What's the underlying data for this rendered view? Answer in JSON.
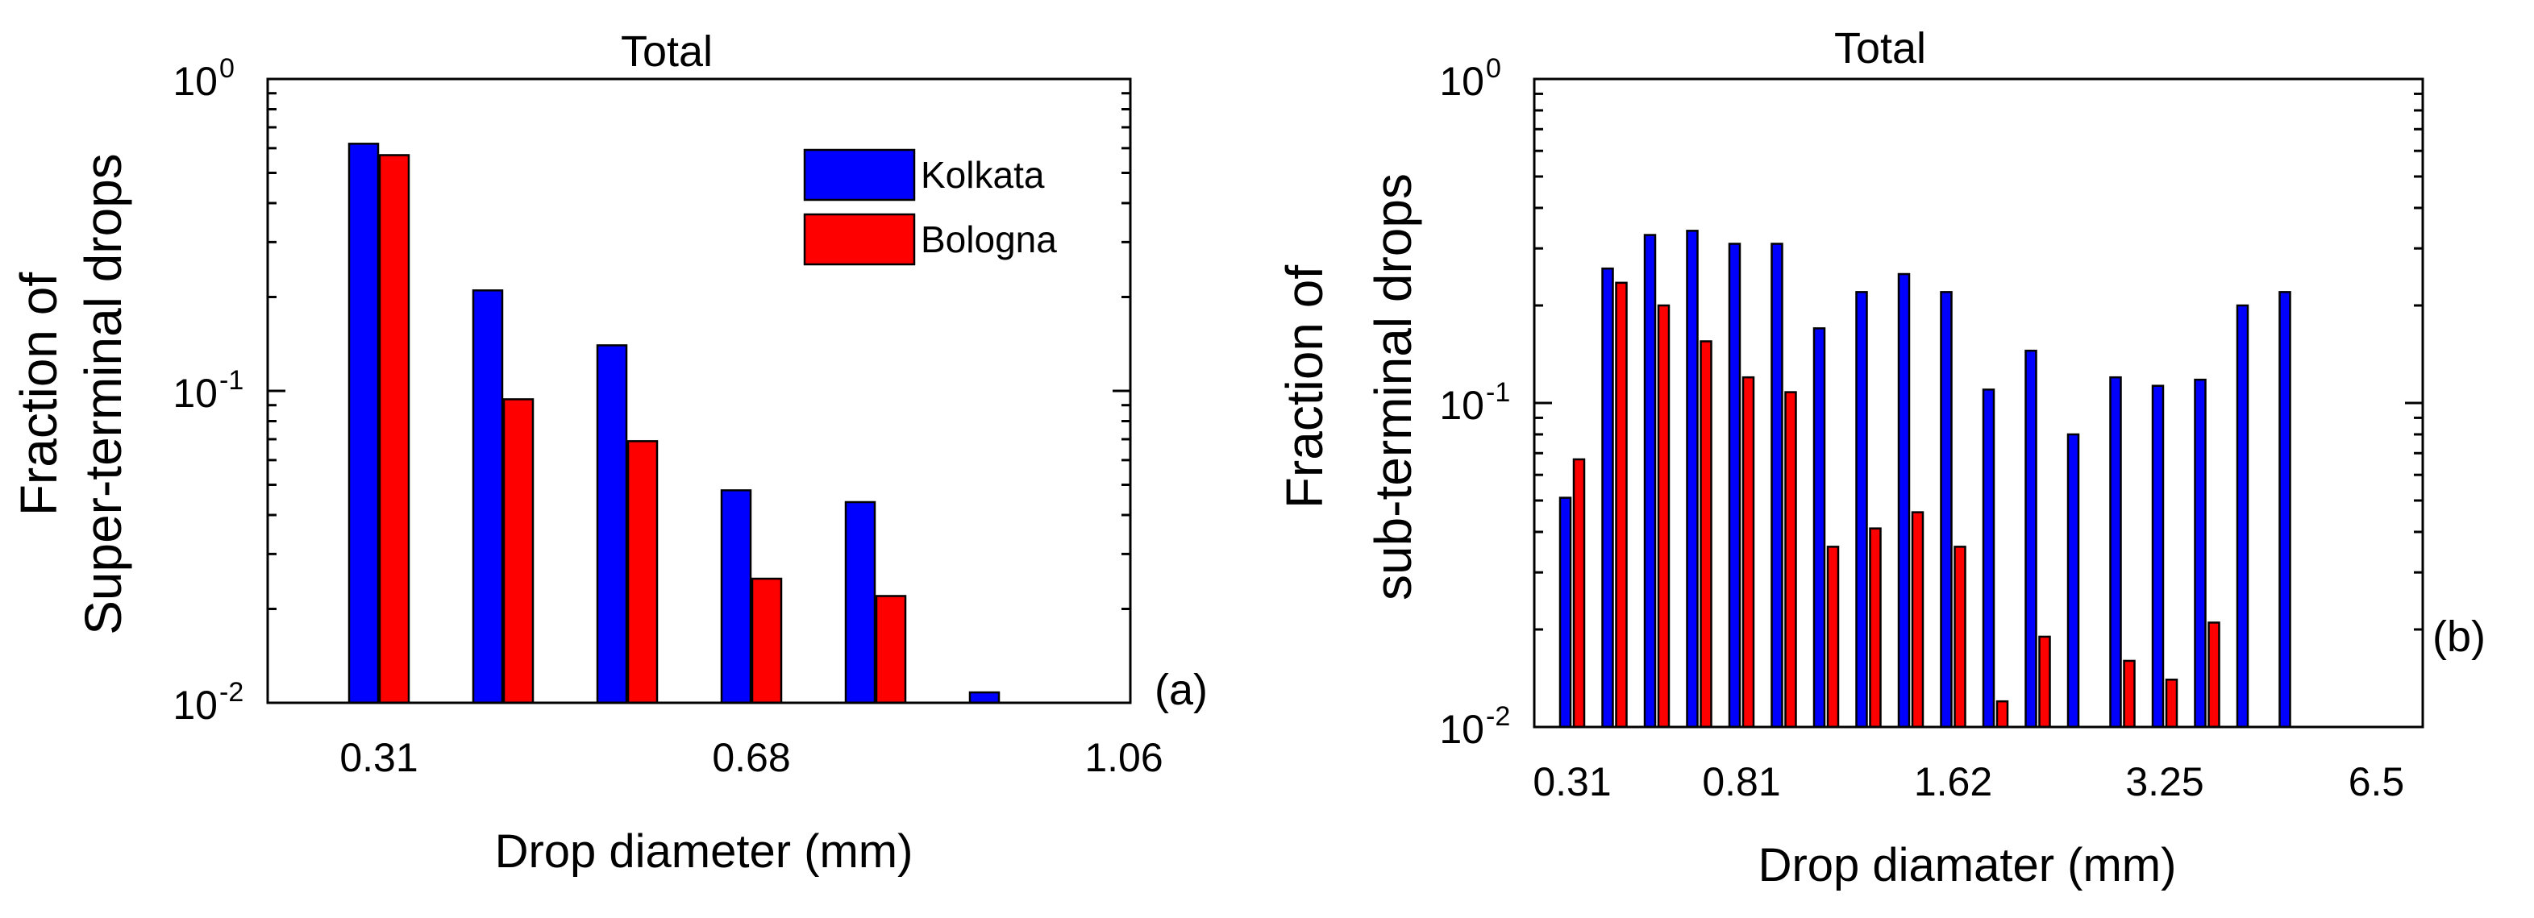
{
  "colors": {
    "kolkata": "#0000ff",
    "bologna": "#ff0000",
    "axis": "#000000"
  },
  "chart_data": [
    {
      "type": "bar",
      "id": "a",
      "title": "Total",
      "panel_label": "(a)",
      "xlabel": "Drop diameter (mm)",
      "ylabel_lines": [
        "Fraction of",
        "Super-terminal drops"
      ],
      "yscale": "log",
      "ylim": [
        0.01,
        1
      ],
      "yticks": [
        {
          "base": "10",
          "exp": "-2"
        },
        {
          "base": "10",
          "exp": "-1"
        },
        {
          "base": "10",
          "exp": "0"
        }
      ],
      "xtick_labels": [
        "0.31",
        "0.68",
        "1.06"
      ],
      "xtick_bins": [
        0,
        3,
        6
      ],
      "legend": {
        "position": "top-right",
        "entries": [
          "Kolkata",
          "Bologna"
        ]
      },
      "series": [
        {
          "name": "Kolkata",
          "values": [
            0.62,
            0.21,
            0.14,
            0.048,
            0.044,
            0.0108
          ]
        },
        {
          "name": "Bologna",
          "values": [
            0.57,
            0.094,
            0.069,
            0.025,
            0.022,
            null
          ]
        }
      ]
    },
    {
      "type": "bar",
      "id": "b",
      "title": "Total",
      "panel_label": "(b)",
      "xlabel": "Drop diamater (mm)",
      "ylabel_lines": [
        "Fraction of",
        "sub-terminal drops"
      ],
      "yscale": "log",
      "ylim": [
        0.01,
        1
      ],
      "yticks": [
        {
          "base": "10",
          "exp": "-2"
        },
        {
          "base": "10",
          "exp": "-1"
        },
        {
          "base": "10",
          "exp": "0"
        }
      ],
      "xtick_labels": [
        "0.31",
        "0.81",
        "1.62",
        "3.25",
        "6.5"
      ],
      "xtick_bins": [
        0,
        4,
        9,
        14,
        19
      ],
      "series": [
        {
          "name": "Kolkata",
          "values": [
            0.051,
            0.26,
            0.33,
            0.34,
            0.31,
            0.31,
            0.17,
            0.22,
            0.25,
            0.22,
            0.11,
            0.145,
            0.08,
            0.12,
            0.113,
            0.118,
            0.2,
            0.22
          ]
        },
        {
          "name": "Bologna",
          "values": [
            0.067,
            0.235,
            0.2,
            0.155,
            0.12,
            0.108,
            0.036,
            0.041,
            0.046,
            0.036,
            0.012,
            0.019,
            null,
            0.016,
            0.014,
            0.021,
            null,
            null
          ]
        }
      ]
    }
  ]
}
